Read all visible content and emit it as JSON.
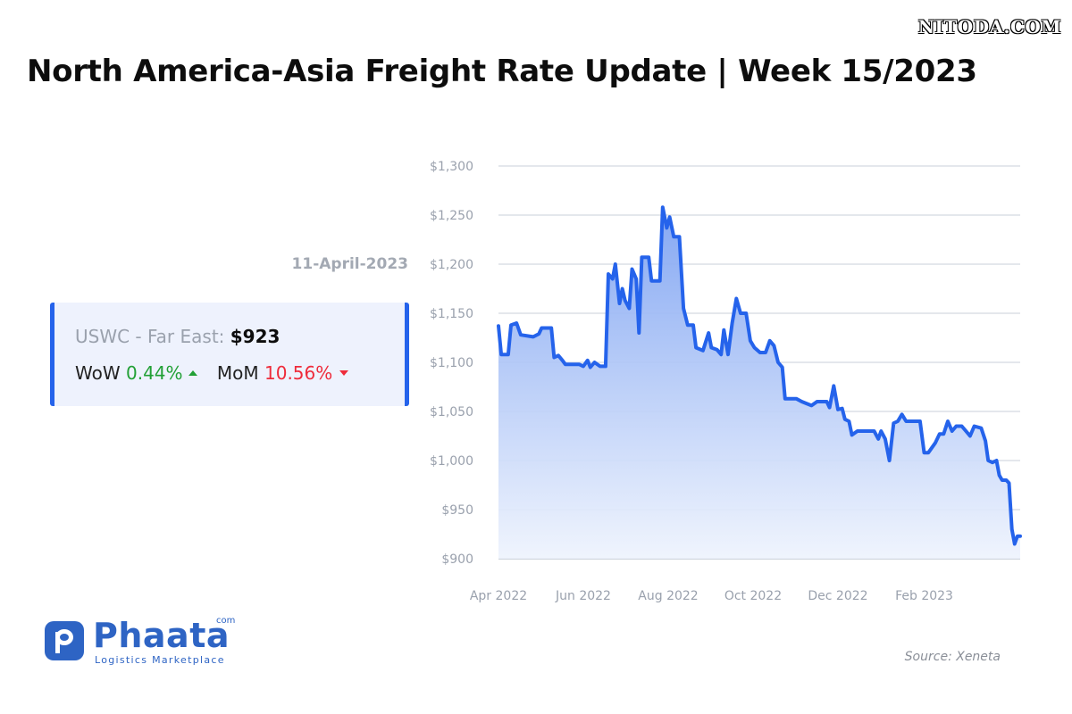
{
  "watermark": "NITODA.COM",
  "title": "North America-Asia Freight Rate Update | Week 15/2023",
  "date_label": "11-April-2023",
  "card": {
    "route": "USWC - Far East:",
    "price": "$923",
    "wow_label": "WoW",
    "wow_value": "0.44%",
    "mom_label": "MoM",
    "mom_value": "10.56%"
  },
  "logo": {
    "name": "Phaata",
    "suffix": "com",
    "tagline": "Logistics Marketplace"
  },
  "source": "Source: Xeneta",
  "colors": {
    "line": "#2563eb",
    "area_top": "#7ea3f2",
    "area_bottom": "#eef3fd",
    "up": "#22a036",
    "down": "#ee2b3b"
  },
  "chart_data": {
    "type": "area",
    "title": "",
    "xlabel": "",
    "ylabel": "",
    "x_ticks": [
      {
        "date": "2022-04-01",
        "label": "Apr 2022"
      },
      {
        "date": "2022-06-01",
        "label": "Jun 2022"
      },
      {
        "date": "2022-08-01",
        "label": "Aug 2022"
      },
      {
        "date": "2022-10-01",
        "label": "Oct 2022"
      },
      {
        "date": "2022-12-01",
        "label": "Dec 2022"
      },
      {
        "date": "2023-02-01",
        "label": "Feb 2023"
      }
    ],
    "y_ticks": [
      900,
      950,
      1000,
      1050,
      1100,
      1150,
      1200,
      1250,
      1300
    ],
    "y_tick_labels": [
      "$900",
      "$950",
      "$1,000",
      "$1,050",
      "$1,100",
      "$1,150",
      "$1,200",
      "$1,250",
      "$1,300"
    ],
    "ylim": [
      900,
      1300
    ],
    "xlim": [
      "2022-04-01",
      "2023-04-11"
    ],
    "grid": true,
    "series": [
      {
        "points": [
          [
            "2022-04-01",
            1137
          ],
          [
            "2022-04-03",
            1108
          ],
          [
            "2022-04-08",
            1108
          ],
          [
            "2022-04-10",
            1138
          ],
          [
            "2022-04-14",
            1140
          ],
          [
            "2022-04-17",
            1128
          ],
          [
            "2022-04-26",
            1126
          ],
          [
            "2022-04-30",
            1129
          ],
          [
            "2022-05-02",
            1135
          ],
          [
            "2022-05-09",
            1135
          ],
          [
            "2022-05-11",
            1105
          ],
          [
            "2022-05-14",
            1107
          ],
          [
            "2022-05-17",
            1102
          ],
          [
            "2022-05-19",
            1098
          ],
          [
            "2022-05-29",
            1098
          ],
          [
            "2022-06-01",
            1096
          ],
          [
            "2022-06-04",
            1102
          ],
          [
            "2022-06-06",
            1095
          ],
          [
            "2022-06-09",
            1100
          ],
          [
            "2022-06-13",
            1096
          ],
          [
            "2022-06-17",
            1096
          ],
          [
            "2022-06-19",
            1190
          ],
          [
            "2022-06-22",
            1185
          ],
          [
            "2022-06-24",
            1200
          ],
          [
            "2022-06-27",
            1160
          ],
          [
            "2022-06-29",
            1175
          ],
          [
            "2022-07-01",
            1163
          ],
          [
            "2022-07-04",
            1155
          ],
          [
            "2022-07-06",
            1195
          ],
          [
            "2022-07-09",
            1185
          ],
          [
            "2022-07-11",
            1130
          ],
          [
            "2022-07-13",
            1207
          ],
          [
            "2022-07-18",
            1207
          ],
          [
            "2022-07-20",
            1183
          ],
          [
            "2022-07-26",
            1183
          ],
          [
            "2022-07-28",
            1258
          ],
          [
            "2022-07-31",
            1237
          ],
          [
            "2022-08-02",
            1248
          ],
          [
            "2022-08-05",
            1228
          ],
          [
            "2022-08-09",
            1228
          ],
          [
            "2022-08-12",
            1155
          ],
          [
            "2022-08-15",
            1138
          ],
          [
            "2022-08-19",
            1138
          ],
          [
            "2022-08-21",
            1115
          ],
          [
            "2022-08-26",
            1112
          ],
          [
            "2022-08-30",
            1130
          ],
          [
            "2022-09-01",
            1115
          ],
          [
            "2022-09-05",
            1113
          ],
          [
            "2022-09-08",
            1108
          ],
          [
            "2022-09-10",
            1133
          ],
          [
            "2022-09-13",
            1108
          ],
          [
            "2022-09-16",
            1140
          ],
          [
            "2022-09-19",
            1165
          ],
          [
            "2022-09-22",
            1150
          ],
          [
            "2022-09-26",
            1150
          ],
          [
            "2022-09-29",
            1122
          ],
          [
            "2022-10-02",
            1115
          ],
          [
            "2022-10-06",
            1110
          ],
          [
            "2022-10-10",
            1110
          ],
          [
            "2022-10-13",
            1122
          ],
          [
            "2022-10-16",
            1117
          ],
          [
            "2022-10-19",
            1100
          ],
          [
            "2022-10-22",
            1095
          ],
          [
            "2022-10-24",
            1063
          ],
          [
            "2022-11-01",
            1063
          ],
          [
            "2022-11-05",
            1060
          ],
          [
            "2022-11-12",
            1056
          ],
          [
            "2022-11-16",
            1060
          ],
          [
            "2022-11-23",
            1060
          ],
          [
            "2022-11-25",
            1054
          ],
          [
            "2022-11-28",
            1076
          ],
          [
            "2022-12-01",
            1052
          ],
          [
            "2022-12-04",
            1053
          ],
          [
            "2022-12-06",
            1042
          ],
          [
            "2022-12-09",
            1040
          ],
          [
            "2022-12-11",
            1026
          ],
          [
            "2022-12-15",
            1030
          ],
          [
            "2022-12-27",
            1030
          ],
          [
            "2022-12-30",
            1022
          ],
          [
            "2023-01-01",
            1030
          ],
          [
            "2023-01-04",
            1022
          ],
          [
            "2023-01-07",
            1000
          ],
          [
            "2023-01-10",
            1038
          ],
          [
            "2023-01-13",
            1040
          ],
          [
            "2023-01-16",
            1047
          ],
          [
            "2023-01-19",
            1040
          ],
          [
            "2023-01-29",
            1040
          ],
          [
            "2023-02-01",
            1008
          ],
          [
            "2023-02-04",
            1008
          ],
          [
            "2023-02-06",
            1012
          ],
          [
            "2023-02-09",
            1018
          ],
          [
            "2023-02-12",
            1027
          ],
          [
            "2023-02-15",
            1027
          ],
          [
            "2023-02-18",
            1040
          ],
          [
            "2023-02-21",
            1030
          ],
          [
            "2023-02-24",
            1035
          ],
          [
            "2023-02-28",
            1035
          ],
          [
            "2023-03-03",
            1030
          ],
          [
            "2023-03-06",
            1025
          ],
          [
            "2023-03-09",
            1035
          ],
          [
            "2023-03-14",
            1033
          ],
          [
            "2023-03-17",
            1020
          ],
          [
            "2023-03-19",
            1000
          ],
          [
            "2023-03-22",
            998
          ],
          [
            "2023-03-25",
            1000
          ],
          [
            "2023-03-27",
            985
          ],
          [
            "2023-03-29",
            980
          ],
          [
            "2023-04-01",
            980
          ],
          [
            "2023-04-03",
            977
          ],
          [
            "2023-04-05",
            930
          ],
          [
            "2023-04-07",
            915
          ],
          [
            "2023-04-09",
            923
          ],
          [
            "2023-04-11",
            923
          ]
        ]
      }
    ]
  }
}
